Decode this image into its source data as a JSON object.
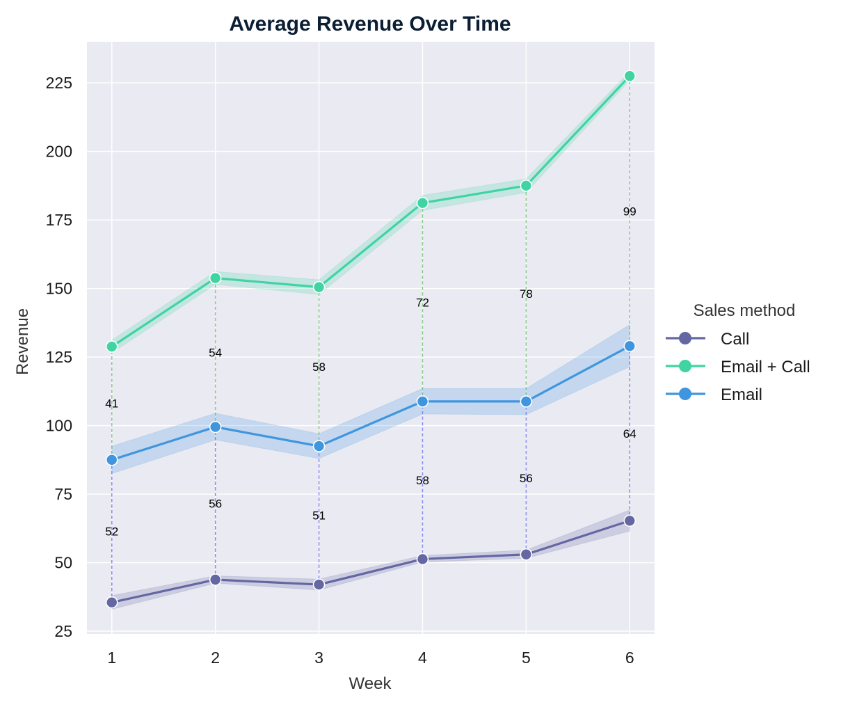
{
  "chart_data": {
    "type": "line",
    "title": "Average Revenue Over Time",
    "xlabel": "Week",
    "ylabel": "Revenue",
    "x": [
      1,
      2,
      3,
      4,
      5,
      6
    ],
    "xlim": [
      0.76,
      6.24
    ],
    "ylim": [
      24,
      240
    ],
    "yticks": [
      25,
      50,
      75,
      100,
      125,
      150,
      175,
      200,
      225
    ],
    "grid": true,
    "background": "#eaeaf2",
    "legend": {
      "title": "Sales method",
      "placement": "right"
    },
    "series": [
      {
        "name": "Call",
        "color": "#6467a2",
        "values": [
          35.5,
          43.8,
          42.0,
          51.3,
          53.0,
          65.3
        ],
        "ci_lower": [
          33.0,
          42.5,
          40.0,
          50.2,
          51.6,
          61.5
        ],
        "ci_upper": [
          38.0,
          45.2,
          44.0,
          52.6,
          54.6,
          69.2
        ]
      },
      {
        "name": "Email + Call",
        "color": "#3fd4a2",
        "values": [
          128.8,
          153.8,
          150.5,
          181.2,
          187.5,
          227.5
        ],
        "ci_lower": [
          126.5,
          151.5,
          147.8,
          178.5,
          185.0,
          226.0
        ],
        "ci_upper": [
          131.2,
          156.2,
          153.2,
          184.0,
          190.0,
          229.2
        ]
      },
      {
        "name": "Email",
        "color": "#3f96df",
        "values": [
          87.5,
          99.5,
          92.5,
          108.8,
          108.8,
          129.0
        ],
        "ci_lower": [
          82.5,
          94.8,
          88.0,
          104.2,
          104.0,
          121.5
        ],
        "ci_upper": [
          92.5,
          104.5,
          97.0,
          113.5,
          113.5,
          136.8
        ]
      }
    ],
    "difference_annotations": [
      {
        "between": [
          "Call",
          "Email"
        ],
        "color": "#8c8cf2",
        "labels": [
          "52",
          "56",
          "51",
          "58",
          "56",
          "64"
        ]
      },
      {
        "between": [
          "Email",
          "Email + Call"
        ],
        "color": "#8fca8f",
        "labels": [
          "41",
          "54",
          "58",
          "72",
          "78",
          "99"
        ]
      }
    ]
  }
}
